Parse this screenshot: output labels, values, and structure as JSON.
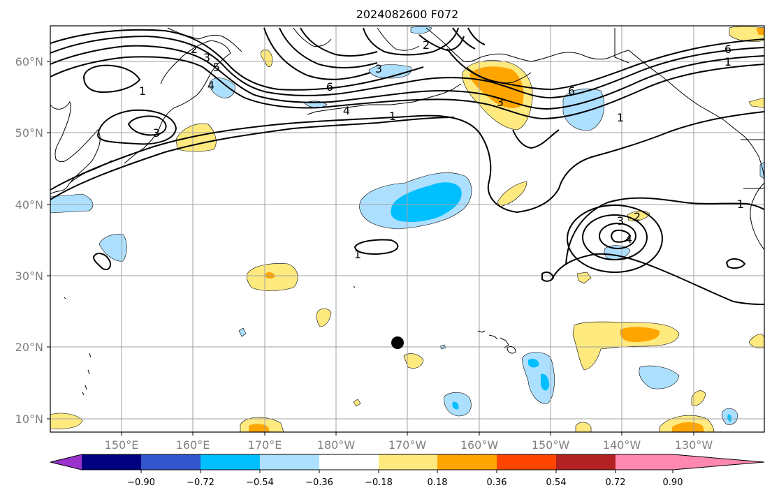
{
  "title": "2024082600 F072",
  "map": {
    "lon_labels": [
      "150°E",
      "160°E",
      "170°E",
      "180°W",
      "170°W",
      "160°W",
      "150°W",
      "140°W",
      "130°W"
    ],
    "lat_labels": [
      "60°N",
      "50°N",
      "40°N",
      "30°N",
      "20°N",
      "10°N"
    ]
  },
  "colorbar": {
    "tick_labels": [
      "−0.90",
      "−0.72",
      "−0.54",
      "−0.36",
      "−0.18",
      "0.18",
      "0.36",
      "0.54",
      "0.72",
      "0.90"
    ],
    "colors": [
      "#9933cc",
      "#000080",
      "#3355cc",
      "#00bfff",
      "#addfff",
      "#ffffff",
      "#ffea80",
      "#ffa500",
      "#ff4500",
      "#b22222",
      "#ff88b0"
    ]
  },
  "shading_colors": {
    "light_blue": "#addfff",
    "blue": "#00bfff",
    "yellow": "#ffea80",
    "orange": "#ffa500"
  },
  "contour_labels": [
    "1",
    "2",
    "3",
    "4",
    "5",
    "6",
    "1",
    "2",
    "3",
    "4",
    "6",
    "3",
    "1",
    "6",
    "2",
    "3",
    "1",
    "3",
    "4",
    "1",
    "1"
  ]
}
